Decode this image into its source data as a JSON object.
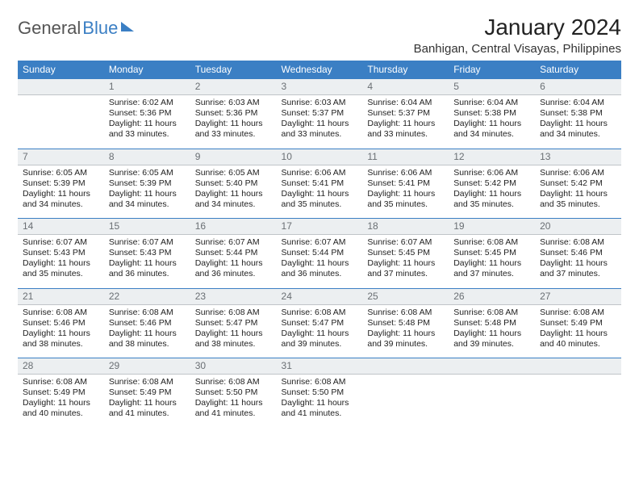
{
  "logo": {
    "part1": "General",
    "part2": "Blue"
  },
  "title": "January 2024",
  "location": "Banhigan, Central Visayas, Philippines",
  "colors": {
    "header_bg": "#3b7fc4",
    "header_text": "#ffffff",
    "daynum_bg": "#eceff1",
    "daynum_text": "#6a6f74",
    "body_text": "#222222",
    "page_bg": "#ffffff"
  },
  "weekdays": [
    "Sunday",
    "Monday",
    "Tuesday",
    "Wednesday",
    "Thursday",
    "Friday",
    "Saturday"
  ],
  "weeks": [
    {
      "nums": [
        "",
        "1",
        "2",
        "3",
        "4",
        "5",
        "6"
      ],
      "cells": [
        null,
        {
          "sunrise": "Sunrise: 6:02 AM",
          "sunset": "Sunset: 5:36 PM",
          "daylight": "Daylight: 11 hours and 33 minutes."
        },
        {
          "sunrise": "Sunrise: 6:03 AM",
          "sunset": "Sunset: 5:36 PM",
          "daylight": "Daylight: 11 hours and 33 minutes."
        },
        {
          "sunrise": "Sunrise: 6:03 AM",
          "sunset": "Sunset: 5:37 PM",
          "daylight": "Daylight: 11 hours and 33 minutes."
        },
        {
          "sunrise": "Sunrise: 6:04 AM",
          "sunset": "Sunset: 5:37 PM",
          "daylight": "Daylight: 11 hours and 33 minutes."
        },
        {
          "sunrise": "Sunrise: 6:04 AM",
          "sunset": "Sunset: 5:38 PM",
          "daylight": "Daylight: 11 hours and 34 minutes."
        },
        {
          "sunrise": "Sunrise: 6:04 AM",
          "sunset": "Sunset: 5:38 PM",
          "daylight": "Daylight: 11 hours and 34 minutes."
        }
      ]
    },
    {
      "nums": [
        "7",
        "8",
        "9",
        "10",
        "11",
        "12",
        "13"
      ],
      "cells": [
        {
          "sunrise": "Sunrise: 6:05 AM",
          "sunset": "Sunset: 5:39 PM",
          "daylight": "Daylight: 11 hours and 34 minutes."
        },
        {
          "sunrise": "Sunrise: 6:05 AM",
          "sunset": "Sunset: 5:39 PM",
          "daylight": "Daylight: 11 hours and 34 minutes."
        },
        {
          "sunrise": "Sunrise: 6:05 AM",
          "sunset": "Sunset: 5:40 PM",
          "daylight": "Daylight: 11 hours and 34 minutes."
        },
        {
          "sunrise": "Sunrise: 6:06 AM",
          "sunset": "Sunset: 5:41 PM",
          "daylight": "Daylight: 11 hours and 35 minutes."
        },
        {
          "sunrise": "Sunrise: 6:06 AM",
          "sunset": "Sunset: 5:41 PM",
          "daylight": "Daylight: 11 hours and 35 minutes."
        },
        {
          "sunrise": "Sunrise: 6:06 AM",
          "sunset": "Sunset: 5:42 PM",
          "daylight": "Daylight: 11 hours and 35 minutes."
        },
        {
          "sunrise": "Sunrise: 6:06 AM",
          "sunset": "Sunset: 5:42 PM",
          "daylight": "Daylight: 11 hours and 35 minutes."
        }
      ]
    },
    {
      "nums": [
        "14",
        "15",
        "16",
        "17",
        "18",
        "19",
        "20"
      ],
      "cells": [
        {
          "sunrise": "Sunrise: 6:07 AM",
          "sunset": "Sunset: 5:43 PM",
          "daylight": "Daylight: 11 hours and 35 minutes."
        },
        {
          "sunrise": "Sunrise: 6:07 AM",
          "sunset": "Sunset: 5:43 PM",
          "daylight": "Daylight: 11 hours and 36 minutes."
        },
        {
          "sunrise": "Sunrise: 6:07 AM",
          "sunset": "Sunset: 5:44 PM",
          "daylight": "Daylight: 11 hours and 36 minutes."
        },
        {
          "sunrise": "Sunrise: 6:07 AM",
          "sunset": "Sunset: 5:44 PM",
          "daylight": "Daylight: 11 hours and 36 minutes."
        },
        {
          "sunrise": "Sunrise: 6:07 AM",
          "sunset": "Sunset: 5:45 PM",
          "daylight": "Daylight: 11 hours and 37 minutes."
        },
        {
          "sunrise": "Sunrise: 6:08 AM",
          "sunset": "Sunset: 5:45 PM",
          "daylight": "Daylight: 11 hours and 37 minutes."
        },
        {
          "sunrise": "Sunrise: 6:08 AM",
          "sunset": "Sunset: 5:46 PM",
          "daylight": "Daylight: 11 hours and 37 minutes."
        }
      ]
    },
    {
      "nums": [
        "21",
        "22",
        "23",
        "24",
        "25",
        "26",
        "27"
      ],
      "cells": [
        {
          "sunrise": "Sunrise: 6:08 AM",
          "sunset": "Sunset: 5:46 PM",
          "daylight": "Daylight: 11 hours and 38 minutes."
        },
        {
          "sunrise": "Sunrise: 6:08 AM",
          "sunset": "Sunset: 5:46 PM",
          "daylight": "Daylight: 11 hours and 38 minutes."
        },
        {
          "sunrise": "Sunrise: 6:08 AM",
          "sunset": "Sunset: 5:47 PM",
          "daylight": "Daylight: 11 hours and 38 minutes."
        },
        {
          "sunrise": "Sunrise: 6:08 AM",
          "sunset": "Sunset: 5:47 PM",
          "daylight": "Daylight: 11 hours and 39 minutes."
        },
        {
          "sunrise": "Sunrise: 6:08 AM",
          "sunset": "Sunset: 5:48 PM",
          "daylight": "Daylight: 11 hours and 39 minutes."
        },
        {
          "sunrise": "Sunrise: 6:08 AM",
          "sunset": "Sunset: 5:48 PM",
          "daylight": "Daylight: 11 hours and 39 minutes."
        },
        {
          "sunrise": "Sunrise: 6:08 AM",
          "sunset": "Sunset: 5:49 PM",
          "daylight": "Daylight: 11 hours and 40 minutes."
        }
      ]
    },
    {
      "nums": [
        "28",
        "29",
        "30",
        "31",
        "",
        "",
        ""
      ],
      "cells": [
        {
          "sunrise": "Sunrise: 6:08 AM",
          "sunset": "Sunset: 5:49 PM",
          "daylight": "Daylight: 11 hours and 40 minutes."
        },
        {
          "sunrise": "Sunrise: 6:08 AM",
          "sunset": "Sunset: 5:49 PM",
          "daylight": "Daylight: 11 hours and 41 minutes."
        },
        {
          "sunrise": "Sunrise: 6:08 AM",
          "sunset": "Sunset: 5:50 PM",
          "daylight": "Daylight: 11 hours and 41 minutes."
        },
        {
          "sunrise": "Sunrise: 6:08 AM",
          "sunset": "Sunset: 5:50 PM",
          "daylight": "Daylight: 11 hours and 41 minutes."
        },
        null,
        null,
        null
      ]
    }
  ]
}
